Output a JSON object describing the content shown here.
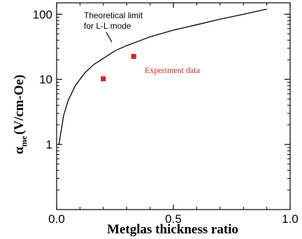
{
  "chart_data": {
    "type": "scatter",
    "xlabel": "Metglas thickness ratio",
    "ylabel": {
      "symbol": "α",
      "subscript": "me",
      "unit": "(V/cm-Oe)"
    },
    "xlim": [
      0.0,
      1.0
    ],
    "ylim": [
      0.1,
      150
    ],
    "yscale": "log",
    "xticks": [
      "0.0",
      "0.5",
      "1.0"
    ],
    "yticks": [
      "1",
      "10",
      "100"
    ],
    "grid": false,
    "series": [
      {
        "name": "Theoretical limit for L-L mode",
        "kind": "line",
        "color": "#000000",
        "x": [
          0.01,
          0.03,
          0.05,
          0.08,
          0.12,
          0.16,
          0.2,
          0.25,
          0.3,
          0.4,
          0.5,
          0.6,
          0.7,
          0.8,
          0.9
        ],
        "y": [
          1.0,
          2.8,
          4.8,
          8.0,
          12.5,
          17.0,
          21.0,
          27.5,
          33.0,
          45.0,
          57.0,
          69.0,
          84.0,
          100.0,
          120.0
        ]
      },
      {
        "name": "Experiment data",
        "kind": "scatter",
        "color": "#e0201b",
        "x": [
          0.2,
          0.33
        ],
        "y": [
          10.2,
          22.5
        ]
      }
    ],
    "annotations": [
      {
        "lines": [
          "Theoretical limit",
          "for L-L mode"
        ],
        "style": "black"
      },
      {
        "lines": [
          "Experiment data"
        ],
        "style": "red"
      }
    ]
  }
}
